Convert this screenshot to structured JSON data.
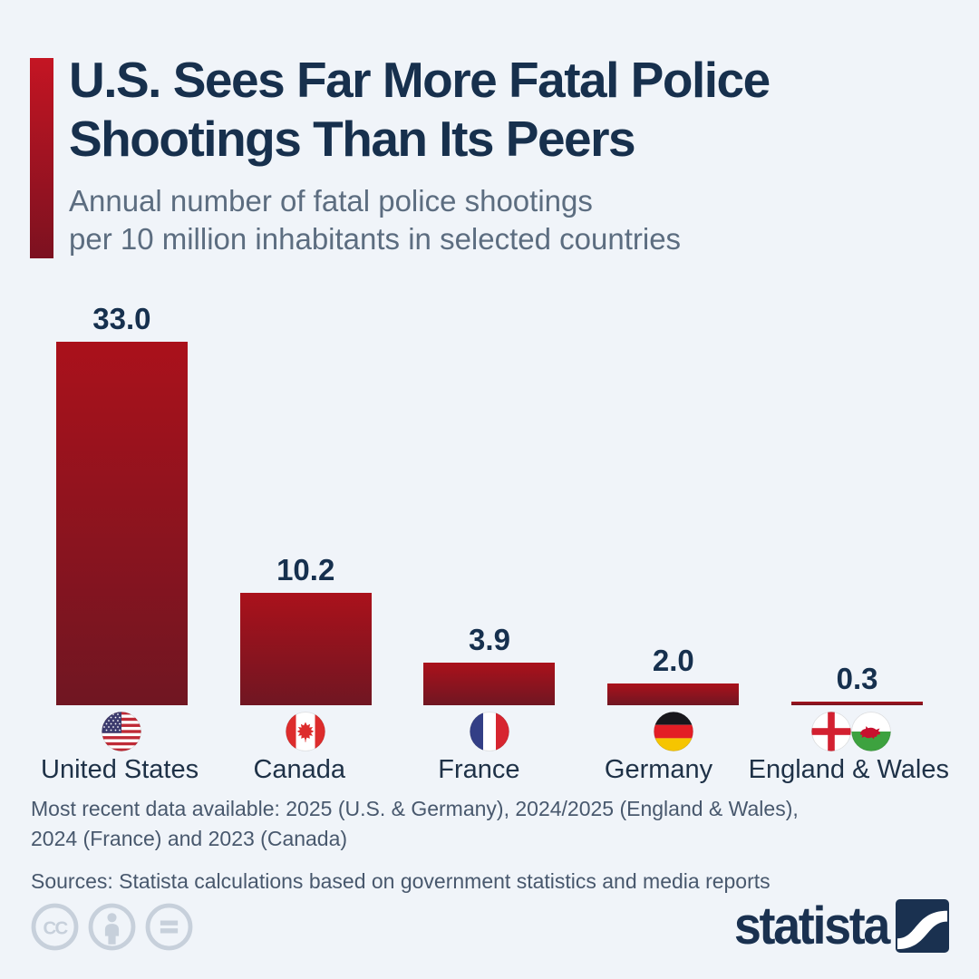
{
  "header": {
    "title_line1": "U.S. Sees Far More Fatal Police",
    "title_line2": "Shootings Than Its Peers",
    "subtitle_line1": "Annual number of fatal police shootings",
    "subtitle_line2": "per 10 million inhabitants in selected countries"
  },
  "chart_data": {
    "type": "bar",
    "title": "U.S. Sees Far More Fatal Police Shootings Than Its Peers",
    "subtitle": "Annual number of fatal police shootings per 10 million inhabitants in selected countries",
    "categories": [
      "United States",
      "Canada",
      "France",
      "Germany",
      "England & Wales"
    ],
    "values": [
      33.0,
      10.2,
      3.9,
      2.0,
      0.3
    ],
    "value_labels": [
      "33.0",
      "10.2",
      "3.9",
      "2.0",
      "0.3"
    ],
    "flag_icons": [
      "us-flag-icon",
      "canada-flag-icon",
      "france-flag-icon",
      "germany-flag-icon",
      "england-flag-icon + wales-flag-icon"
    ],
    "xlabel": "",
    "ylabel": "",
    "ylim": [
      0,
      33
    ],
    "grid": false,
    "legend": "none",
    "bar_color_top": "#aa111b",
    "bar_color_bottom": "#701622"
  },
  "footer": {
    "note_line1": "Most recent data available: 2025 (U.S. & Germany), 2024/2025 (England & Wales),",
    "note_line2": "2024 (France) and 2023 (Canada)",
    "sources": "Sources: Statista calculations based on government statistics and media reports"
  },
  "branding": {
    "logo_text": "statista",
    "license_icons": [
      "cc-icon",
      "attribution-person-icon",
      "equal-sign-icon"
    ]
  },
  "colors": {
    "background": "#f0f4f9",
    "title_navy": "#17304d",
    "subtitle_gray": "#5c6d80",
    "accent_top": "#c41523",
    "accent_bottom": "#7c1120",
    "footnote_slate": "#48586d",
    "license_gray": "#c7d0db",
    "brand_navy": "#1a3150"
  }
}
